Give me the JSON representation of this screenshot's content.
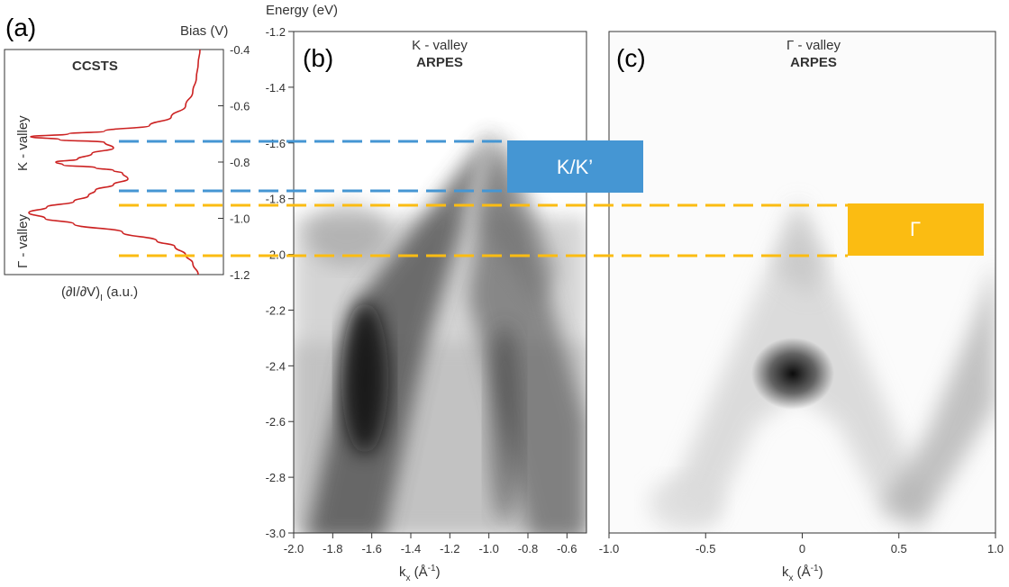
{
  "figure": {
    "panel_a": {
      "letter": "(a)",
      "title": "CCSTS",
      "ylabel": "Bias (V)",
      "xlabel_main": "(∂I/∂V)",
      "xlabel_sub": "I",
      "xlabel_unit": " (a.u.)",
      "region_upper": "K - valley",
      "region_lower": "Γ - valley"
    },
    "shared_axis_label": "Energy (eV)",
    "panel_b": {
      "letter": "(b)",
      "title": "K - valley",
      "subtitle": "ARPES",
      "xlabel_main": "k",
      "xlabel_sub": "x",
      "xlabel_unit": " (Å",
      "xlabel_exp": "-1",
      "xlabel_close": ")"
    },
    "panel_c": {
      "letter": "(c)",
      "title": "Γ - valley",
      "subtitle": "ARPES",
      "xlabel_main": "k",
      "xlabel_sub": "x",
      "xlabel_unit": " (Å",
      "xlabel_exp": "-1",
      "xlabel_close": ")"
    },
    "boxes": {
      "kk_label": "K/K’",
      "gamma_label": "Γ",
      "kk_color": "#4596d3",
      "gamma_color": "#fbbc12"
    }
  },
  "chart_data": [
    {
      "panel": "a",
      "type": "line",
      "title": "CCSTS",
      "ylabel": "Bias (V)",
      "xlabel": "(∂I/∂V)I (a.u.)",
      "ylim": [
        -0.4,
        -1.2
      ],
      "yticks": [
        "-0.4",
        "-0.6",
        "-0.8",
        "-1.0",
        "-1.2"
      ],
      "x_ticks_shown": false,
      "series": [
        {
          "color": "#cc2222",
          "y": [
            -0.4,
            -0.45,
            -0.5,
            -0.55,
            -0.6,
            -0.64,
            -0.67,
            -0.69,
            -0.7,
            -0.71,
            -0.72,
            -0.73,
            -0.75,
            -0.77,
            -0.79,
            -0.8,
            -0.81,
            -0.82,
            -0.83,
            -0.84,
            -0.86,
            -0.88,
            -0.9,
            -0.92,
            -0.94,
            -0.96,
            -0.98,
            -1.0,
            -1.02,
            -1.05,
            -1.08,
            -1.1,
            -1.13,
            -1.16,
            -1.2
          ],
          "x": [
            0.02,
            0.03,
            0.04,
            0.06,
            0.1,
            0.18,
            0.3,
            0.55,
            0.75,
            0.96,
            0.8,
            0.55,
            0.5,
            0.62,
            0.7,
            0.82,
            0.78,
            0.6,
            0.5,
            0.45,
            0.42,
            0.5,
            0.6,
            0.64,
            0.72,
            0.87,
            0.97,
            0.88,
            0.72,
            0.45,
            0.26,
            0.16,
            0.1,
            0.06,
            0.03
          ]
        }
      ],
      "annotations": [
        "K - valley",
        "Γ - valley"
      ]
    },
    {
      "panel": "b",
      "type": "heatmap",
      "title": "K - valley",
      "subtitle": "ARPES",
      "ylabel": "Energy (eV)",
      "xlabel": "kx (Å-1)",
      "xlim": [
        -2.0,
        -0.5
      ],
      "ylim": [
        -1.2,
        -3.0
      ],
      "xticks": [
        "-2.0",
        "-1.8",
        "-1.6",
        "-1.4",
        "-1.2",
        "-1.0",
        "-0.8",
        "-0.6"
      ],
      "yticks": [
        "-1.2",
        "-1.4",
        "-1.6",
        "-1.8",
        "-2.0",
        "-2.2",
        "-2.4",
        "-2.6",
        "-2.8",
        "-3.0"
      ],
      "colormap": "grayscale (dark = high intensity)",
      "features": [
        {
          "name": "inverted-V band",
          "apex_k": -1.1,
          "apex_E": -1.6,
          "branches_k_at_E_minus_3": [
            -1.7,
            -0.55
          ]
        },
        {
          "name": "intensity maximum",
          "k": -1.65,
          "E": -2.45
        }
      ]
    },
    {
      "panel": "c",
      "type": "heatmap",
      "title": "Γ - valley",
      "subtitle": "ARPES",
      "xlabel": "kx (Å-1)",
      "xlim": [
        -1.0,
        1.0
      ],
      "ylim": [
        -1.2,
        -3.0
      ],
      "xticks": [
        "-1.0",
        "-0.5",
        "0",
        "0.5",
        "1.0"
      ],
      "colormap": "grayscale (dark = high intensity)",
      "features": [
        {
          "name": "Γ band maximum",
          "k": 0.0,
          "E": -1.9
        },
        {
          "name": "intensity maximum",
          "k": 0.0,
          "E": -2.43
        },
        {
          "name": "outer bands",
          "k": [
            -0.6,
            0.9
          ],
          "E_range": [
            -2.4,
            -3.0
          ]
        }
      ]
    }
  ],
  "overlays": [
    {
      "name": "K/K’",
      "color": "#4596d3",
      "style": "dashed",
      "energy_range_eV": [
        -1.6,
        -1.77
      ],
      "bias_range_V": [
        -0.7,
        -0.88
      ]
    },
    {
      "name": "Γ",
      "color": "#fbbc12",
      "style": "dashed",
      "energy_range_eV": [
        -1.82,
        -2.0
      ],
      "bias_range_V": [
        -0.92,
        -1.1
      ]
    }
  ]
}
